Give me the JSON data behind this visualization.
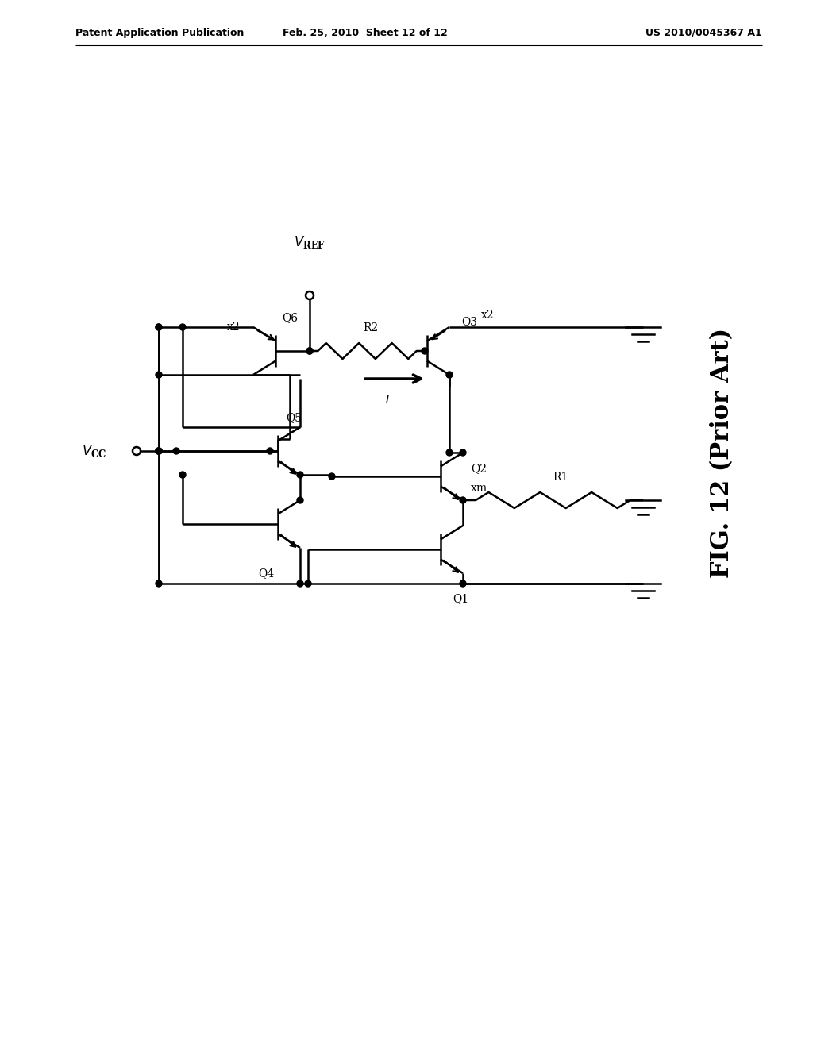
{
  "bg_color": "#ffffff",
  "line_color": "#000000",
  "header_left": "Patent Application Publication",
  "header_mid": "Feb. 25, 2010  Sheet 12 of 12",
  "header_right": "US 2010/0045367 A1",
  "fig_label": "FIG. 12 (Prior Art)"
}
